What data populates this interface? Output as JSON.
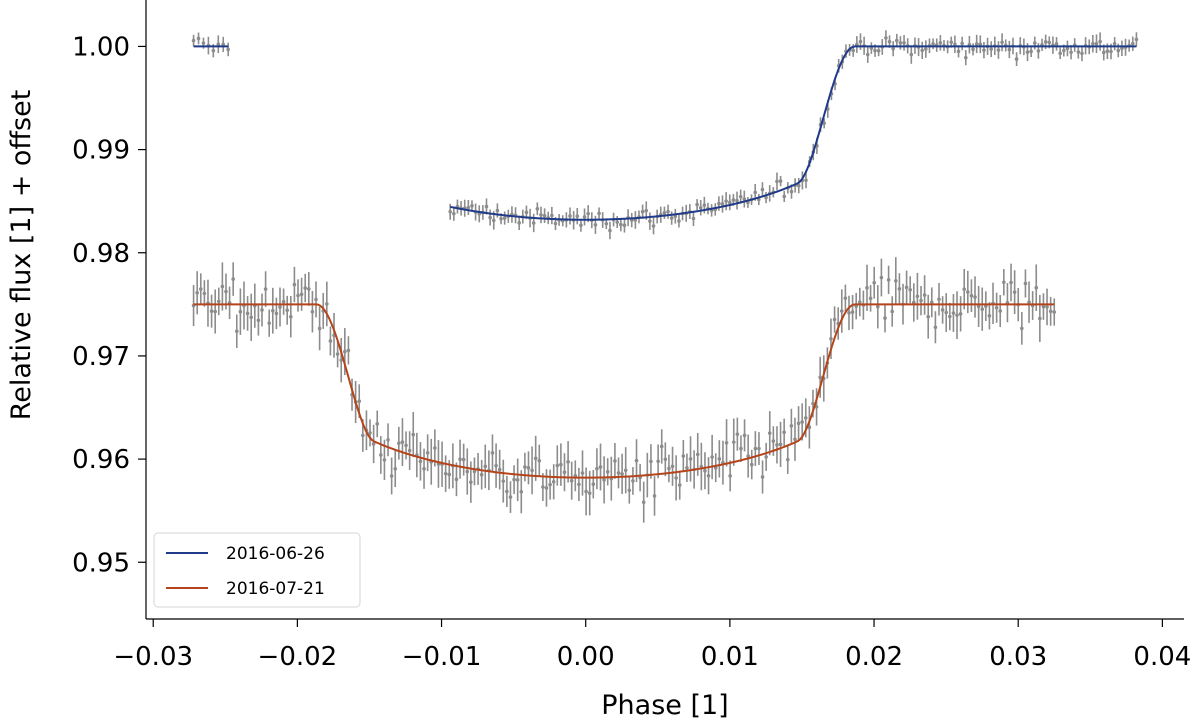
{
  "chart_data": {
    "type": "scatter",
    "title": "",
    "xlabel": "Phase [1]",
    "ylabel": "Relative flux [1] + offset",
    "xlim": [
      -0.0305,
      0.0415
    ],
    "ylim": [
      0.9445,
      1.0045
    ],
    "xticks": [
      -0.03,
      -0.02,
      -0.01,
      0.0,
      0.01,
      0.02,
      0.03,
      0.04
    ],
    "xtick_labels": [
      "−0.03",
      "−0.02",
      "−0.01",
      "0.00",
      "0.01",
      "0.02",
      "0.03",
      "0.04"
    ],
    "yticks": [
      0.95,
      0.96,
      0.97,
      0.98,
      0.99,
      1.0
    ],
    "ytick_labels": [
      "0.95",
      "0.96",
      "0.97",
      "0.98",
      "0.99",
      "1.00"
    ],
    "grid": false,
    "legend_position": "bottom-left",
    "data_point_color": "#8c8c8c",
    "series": [
      {
        "name": "2016-06-26",
        "color": "#1f3a8a",
        "model": {
          "baseline": 1.0,
          "depth": 0.0168,
          "t1": -0.0187,
          "t4": 0.0187,
          "ingress": 0.004,
          "limb_u": 0.55
        },
        "segments": [
          [
            -0.0272,
            -0.0248
          ],
          [
            -0.0094,
            0.0382
          ]
        ],
        "data": {
          "x_start": [
            -0.0272,
            -0.0094
          ],
          "x_end": [
            -0.0248,
            0.0382
          ],
          "n_points": [
            8,
            190
          ],
          "scatter": 0.0006,
          "error": 0.0007
        }
      },
      {
        "name": "2016-07-21",
        "color": "#b5441a",
        "model": {
          "baseline": 0.975,
          "depth": 0.0168,
          "t1": -0.0187,
          "t4": 0.0187,
          "ingress": 0.004,
          "limb_u": 0.55
        },
        "segments": [
          [
            -0.0272,
            0.0325
          ]
        ],
        "data": {
          "x_start": [
            -0.0272
          ],
          "x_end": [
            0.0325
          ],
          "n_points": [
            240
          ],
          "scatter": 0.0017,
          "error": 0.0018
        }
      }
    ]
  }
}
